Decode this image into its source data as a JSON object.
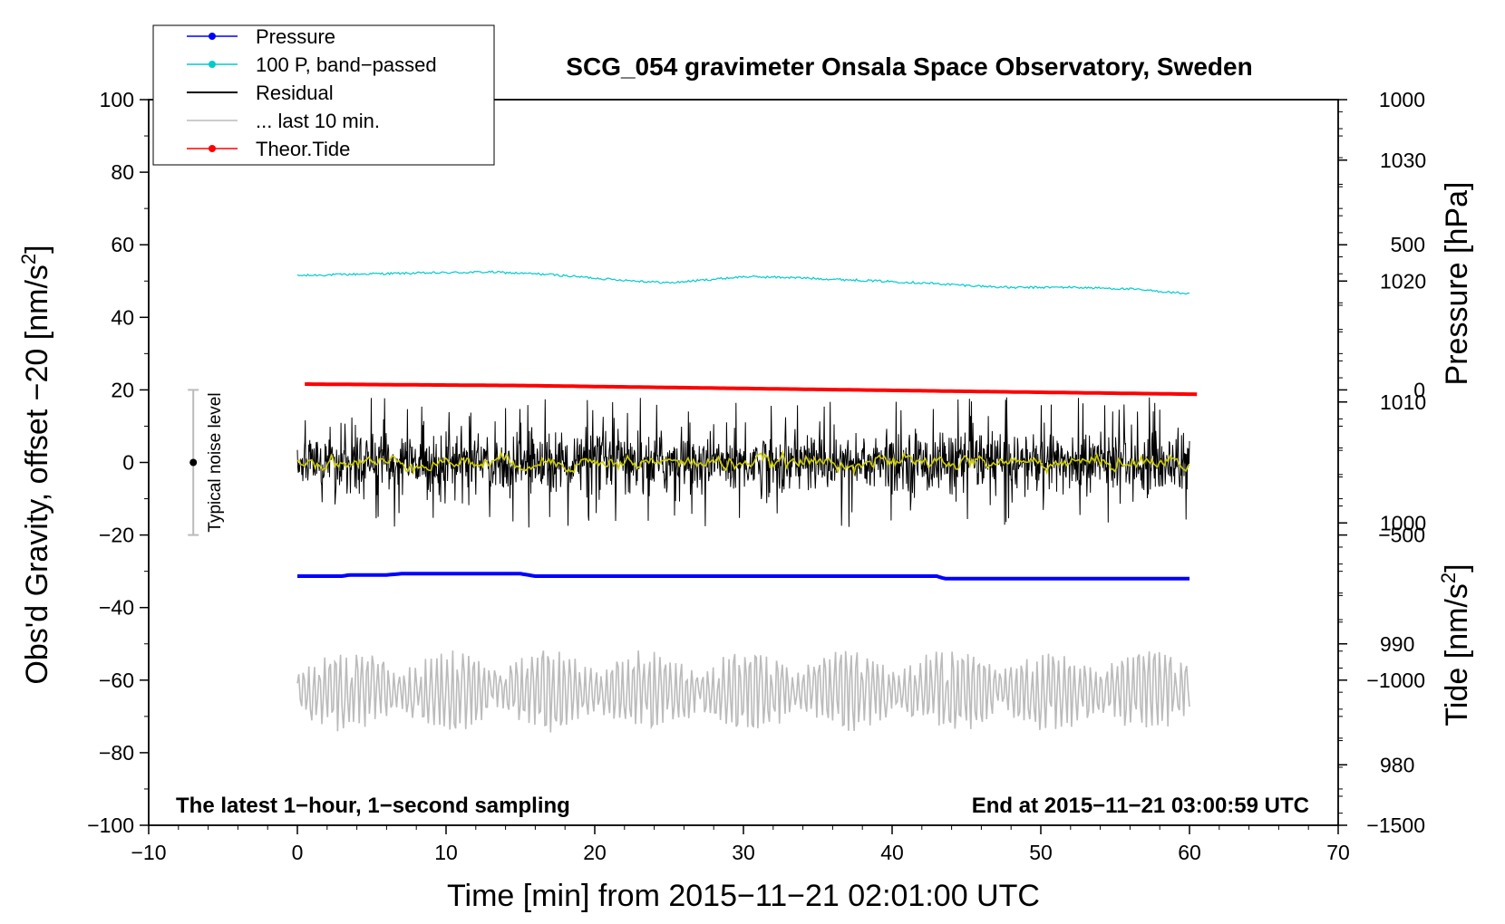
{
  "chart_data": {
    "type": "line",
    "title": "SCG_054 gravimeter Onsala Space Observatory, Sweden",
    "xlabel": "Time [min] from 2015−11−21 02:01:00 UTC",
    "ylabel_left": "Obs'd Gravity, offset −20 [nm/s",
    "ylabel_left_sup": "2",
    "ylabel_left_close": "]",
    "ylabel_right_pressure": "Pressure [hPa]",
    "ylabel_right_tide": "Tide [nm/s",
    "ylabel_right_tide_sup": "2",
    "ylabel_right_tide_close": "]",
    "xlim": [
      -10,
      70
    ],
    "ylim": [
      -100,
      100
    ],
    "x_ticks": [
      {
        "value": -10,
        "label": "−10"
      },
      {
        "value": 0,
        "label": "0"
      },
      {
        "value": 10,
        "label": "10"
      },
      {
        "value": 20,
        "label": "20"
      },
      {
        "value": 30,
        "label": "30"
      },
      {
        "value": 40,
        "label": "40"
      },
      {
        "value": 50,
        "label": "50"
      },
      {
        "value": 60,
        "label": "60"
      },
      {
        "value": 70,
        "label": "70"
      }
    ],
    "y_ticks": [
      {
        "value": 100,
        "label": "100"
      },
      {
        "value": 80,
        "label": "80"
      },
      {
        "value": 60,
        "label": "60"
      },
      {
        "value": 40,
        "label": "40"
      },
      {
        "value": 20,
        "label": "20"
      },
      {
        "value": 0,
        "label": "0"
      },
      {
        "value": -20,
        "label": "−20"
      },
      {
        "value": -40,
        "label": "−40"
      },
      {
        "value": -60,
        "label": "−60"
      },
      {
        "value": -80,
        "label": "−80"
      },
      {
        "value": -100,
        "label": "−100"
      }
    ],
    "pressure_axis": {
      "range": [
        975,
        1035
      ],
      "ticks": [
        {
          "value": 1030,
          "label": "1030"
        },
        {
          "value": 1020,
          "label": "1020"
        },
        {
          "value": 1010,
          "label": "1010"
        },
        {
          "value": 1000,
          "label": "1000"
        },
        {
          "value": 990,
          "label": "990"
        },
        {
          "value": 980,
          "label": "980"
        }
      ]
    },
    "tide_axis": {
      "range": [
        -1500,
        1000
      ],
      "ticks": [
        {
          "value": 1000,
          "label": "1000"
        },
        {
          "value": 500,
          "label": "500"
        },
        {
          "value": 0,
          "label": "0"
        },
        {
          "value": -500,
          "label": "−500"
        },
        {
          "value": -1000,
          "label": "−1000"
        },
        {
          "value": -1500,
          "label": "−1500"
        }
      ]
    },
    "legend": {
      "position": "top-left",
      "entries": [
        {
          "label": "Pressure",
          "color": "#0000ff",
          "marker": true
        },
        {
          "label": "100 P, band−passed",
          "color": "#00cccc",
          "marker": true
        },
        {
          "label": "Residual",
          "color": "#000000",
          "marker": false
        },
        {
          "label": "... last 10 min.",
          "color": "#bbbbbb",
          "marker": false
        },
        {
          "label": "Theor.Tide",
          "color": "#ff0000",
          "marker": true
        }
      ]
    },
    "series": [
      {
        "name": "Pressure",
        "axis": "pressure",
        "color": "#0000ff",
        "x": [
          0,
          3,
          3.5,
          6,
          7,
          15,
          16,
          30,
          43,
          43.5,
          60
        ],
        "values": [
          995.6,
          995.6,
          995.7,
          995.7,
          995.8,
          995.8,
          995.6,
          995.6,
          995.6,
          995.4,
          995.4
        ]
      },
      {
        "name": "100 P, band−passed",
        "axis": "left",
        "color": "#00cccc",
        "x": [
          0,
          5,
          10,
          13,
          17,
          21,
          25,
          28,
          30,
          33,
          38,
          42,
          45,
          48,
          52,
          56,
          60
        ],
        "values": [
          51.5,
          52.0,
          52.3,
          52.5,
          51.8,
          50.5,
          49.5,
          50.5,
          51.2,
          51.0,
          50.2,
          49.5,
          48.8,
          48.2,
          48.3,
          47.8,
          46.5
        ]
      },
      {
        "name": "Residual",
        "axis": "left",
        "color": "#000000",
        "x_range": [
          0,
          60
        ],
        "amplitude_typical": 8,
        "amplitude_max": 18
      },
      {
        "name": "Residual smoothed",
        "axis": "left",
        "color": "#cccc00",
        "x_range": [
          0,
          60
        ],
        "amplitude_typical": 1
      },
      {
        "name": "Theor.Tide",
        "axis": "tide",
        "color": "#ff0000",
        "x": [
          0.5,
          15,
          30,
          45,
          60.5
        ],
        "values": [
          20,
          15,
          5,
          -5,
          -15
        ]
      },
      {
        "name": "... last 10 min.",
        "axis": "left",
        "color": "#bbbbbb",
        "x_range": [
          0,
          60
        ],
        "center": -63,
        "amplitude_typical": 8,
        "amplitude_max": 16
      }
    ],
    "noise_bar": {
      "label": "Typical noise level",
      "x": -7,
      "range": [
        -20,
        20
      ],
      "center": 0
    },
    "annotations": {
      "left": "The latest 1−hour, 1−second sampling",
      "right": "End at 2015−11−21 03:00:59 UTC"
    }
  }
}
